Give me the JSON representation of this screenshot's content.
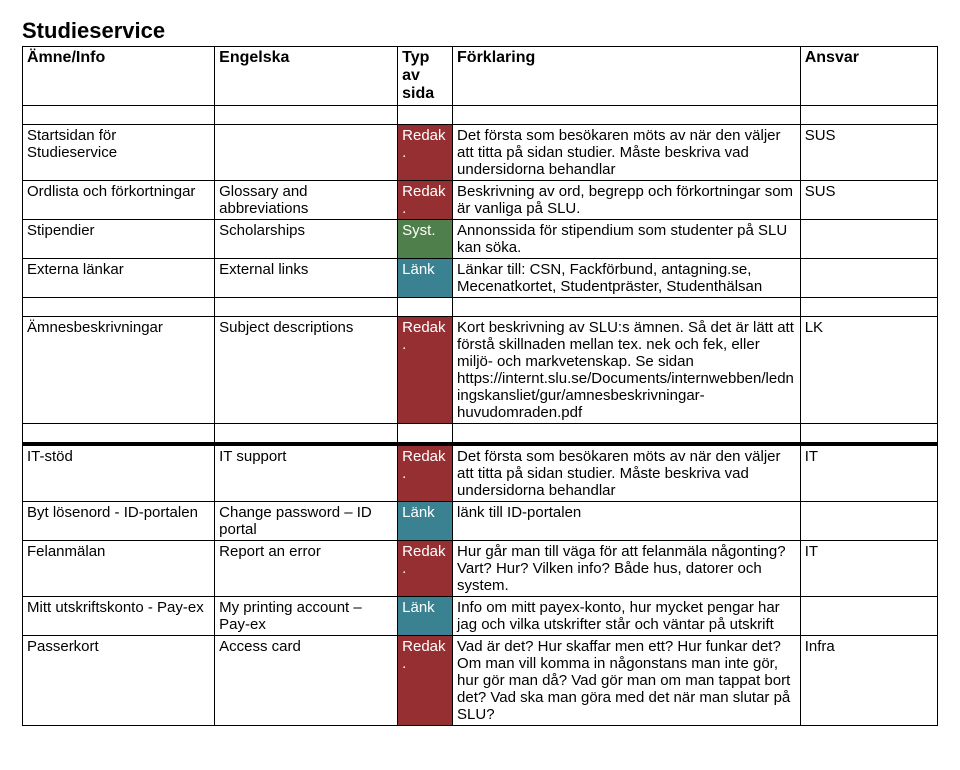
{
  "title": "Studieservice",
  "headers": {
    "amne": "Ämne/Info",
    "engelska": "Engelska",
    "typ": "Typ av sida",
    "forklaring": "Förklaring",
    "ansvar": "Ansvar"
  },
  "typ_colors": {
    "redak": "#962f31",
    "syst": "#4f7f4a",
    "lank": "#3a8291",
    "text_on_dark": "#ffffff"
  },
  "rows": {
    "r1": {
      "amne": "Startsidan för Studieservice",
      "eng": "",
      "typ": "Redak.",
      "typClass": "typ-redak",
      "fork": "Det första som besökaren möts av när den väljer att titta på sidan studier. Måste beskriva vad undersidorna behandlar",
      "ansvar": "SUS"
    },
    "r2": {
      "amne": "Ordlista och förkortningar",
      "eng": "Glossary and abbreviations",
      "typ": "Redak.",
      "typClass": "typ-redak",
      "fork": "Beskrivning av ord, begrepp och förkortningar som är vanliga på SLU.",
      "ansvar": "SUS"
    },
    "r3": {
      "amne": "Stipendier",
      "eng": "Scholarships",
      "typ": "Syst.",
      "typClass": "typ-syst",
      "fork": "Annonssida för stipendium som studenter på SLU kan söka.",
      "ansvar": ""
    },
    "r4": {
      "amne": "Externa länkar",
      "eng": "External links",
      "typ": "Länk",
      "typClass": "typ-lank",
      "fork": "Länkar till: CSN, Fackförbund, antagning.se, Mecenatkortet, Studentpräster, Studenthälsan",
      "ansvar": ""
    },
    "r5": {
      "amne": "Ämnesbeskrivningar",
      "eng": "Subject descriptions",
      "typ": "Redak.",
      "typClass": "typ-redak",
      "fork": "Kort beskrivning av SLU:s ämnen. Så det är lätt att förstå skillnaden mellan tex. nek och fek, eller miljö- och markvetenskap. Se sidan https://internt.slu.se/Documents/internwebben/ledningskansliet/gur/amnesbeskrivningar-huvudomraden.pdf",
      "ansvar": "LK"
    },
    "r6": {
      "amne": "IT-stöd",
      "eng": "IT support",
      "typ": "Redak.",
      "typClass": "typ-redak",
      "fork": "Det första som besökaren möts av när den väljer att titta på sidan studier. Måste beskriva vad undersidorna behandlar",
      "ansvar": "IT"
    },
    "r7": {
      "amne": "Byt lösenord - ID-portalen",
      "eng": "Change password – ID portal",
      "typ": "Länk",
      "typClass": "typ-lank",
      "fork": "länk till ID-portalen",
      "ansvar": ""
    },
    "r8": {
      "amne": "Felanmälan",
      "eng": "Report an error",
      "typ": "Redak.",
      "typClass": "typ-redak",
      "fork": "Hur går man till väga för att felanmäla någonting? Vart? Hur? Vilken info? Både hus, datorer och system.",
      "ansvar": "IT"
    },
    "r9": {
      "amne": "Mitt utskriftskonto - Pay-ex",
      "eng": "My printing account – Pay-ex",
      "typ": "Länk",
      "typClass": "typ-lank",
      "fork": "Info om mitt payex-konto, hur mycket pengar har jag och vilka utskrifter står och väntar på utskrift",
      "ansvar": ""
    },
    "r10": {
      "amne": "Passerkort",
      "eng": "Access card",
      "typ": "Redak.",
      "typClass": "typ-redak",
      "fork": "Vad är det? Hur skaffar men ett? Hur funkar det? Om man vill komma in någonstans man inte gör, hur gör man då? Vad gör man om man tappat bort det? Vad ska man göra med det när man slutar på SLU?",
      "ansvar": "Infra"
    }
  }
}
